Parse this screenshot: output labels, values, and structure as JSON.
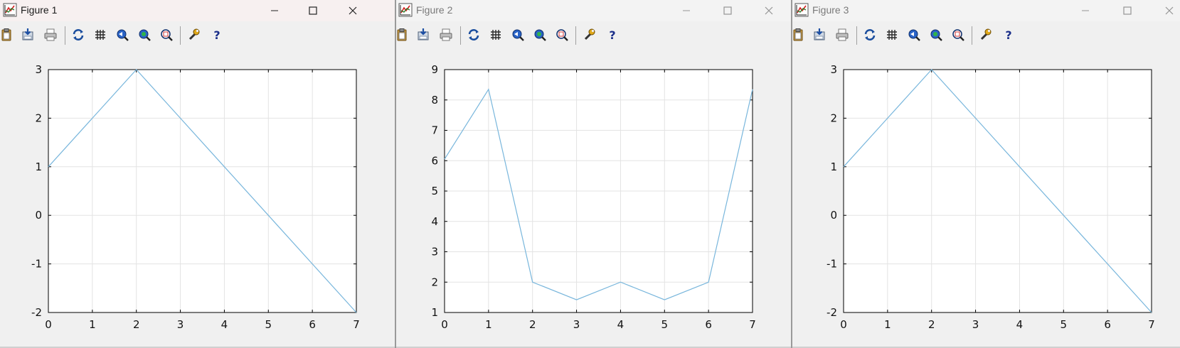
{
  "colors": {
    "line": "#78b6dc",
    "grid": "#e3e3e3",
    "axes": "#000000",
    "title_bg_active": "#f7f0f0",
    "title_bg_inactive": "#f3f3f3"
  },
  "toolbar_icons": [
    "copy-clipboard-icon",
    "save-figure-icon",
    "print-icon",
    "refresh-icon",
    "grid-toggle-icon",
    "zoom-in-icon",
    "zoom-out-icon",
    "zoom-autoscale-icon",
    "settings-wrench-icon",
    "help-icon"
  ],
  "window_controls": [
    "minimize-icon",
    "maximize-icon",
    "close-icon"
  ],
  "windows": [
    {
      "title": "Figure 1",
      "active": true
    },
    {
      "title": "Figure 2",
      "active": false
    },
    {
      "title": "Figure 3",
      "active": false
    }
  ],
  "chart_data": [
    {
      "type": "line",
      "x": [
        0,
        1,
        2,
        3,
        4,
        5,
        6,
        7
      ],
      "xticks": [
        "0",
        "1",
        "2",
        "3",
        "4",
        "5",
        "6",
        "7"
      ],
      "yticks": [
        "-2",
        "-1",
        "0",
        "1",
        "2",
        "3"
      ],
      "xlim": [
        0,
        7
      ],
      "ylim": [
        -2,
        3
      ],
      "series": [
        {
          "values": [
            1,
            2,
            3,
            2,
            1,
            0,
            -1,
            -2
          ]
        }
      ],
      "grid": true
    },
    {
      "type": "line",
      "x": [
        0,
        1,
        2,
        3,
        4,
        5,
        6,
        7
      ],
      "xticks": [
        "0",
        "1",
        "2",
        "3",
        "4",
        "5",
        "6",
        "7"
      ],
      "yticks": [
        "1",
        "2",
        "3",
        "4",
        "5",
        "6",
        "7",
        "8",
        "9"
      ],
      "xlim": [
        0,
        7
      ],
      "ylim": [
        1,
        9
      ],
      "series": [
        {
          "values": [
            6.05,
            8.35,
            2,
            1.42,
            2,
            1.42,
            2,
            8.35
          ]
        }
      ],
      "grid": true
    },
    {
      "type": "line",
      "x": [
        0,
        1,
        2,
        3,
        4,
        5,
        6,
        7
      ],
      "xticks": [
        "0",
        "1",
        "2",
        "3",
        "4",
        "5",
        "6",
        "7"
      ],
      "yticks": [
        "-2",
        "-1",
        "0",
        "1",
        "2",
        "3"
      ],
      "xlim": [
        0,
        7
      ],
      "ylim": [
        -2,
        3
      ],
      "series": [
        {
          "values": [
            1,
            2,
            3,
            2,
            1,
            0,
            -1,
            -2
          ]
        }
      ],
      "grid": true
    }
  ]
}
